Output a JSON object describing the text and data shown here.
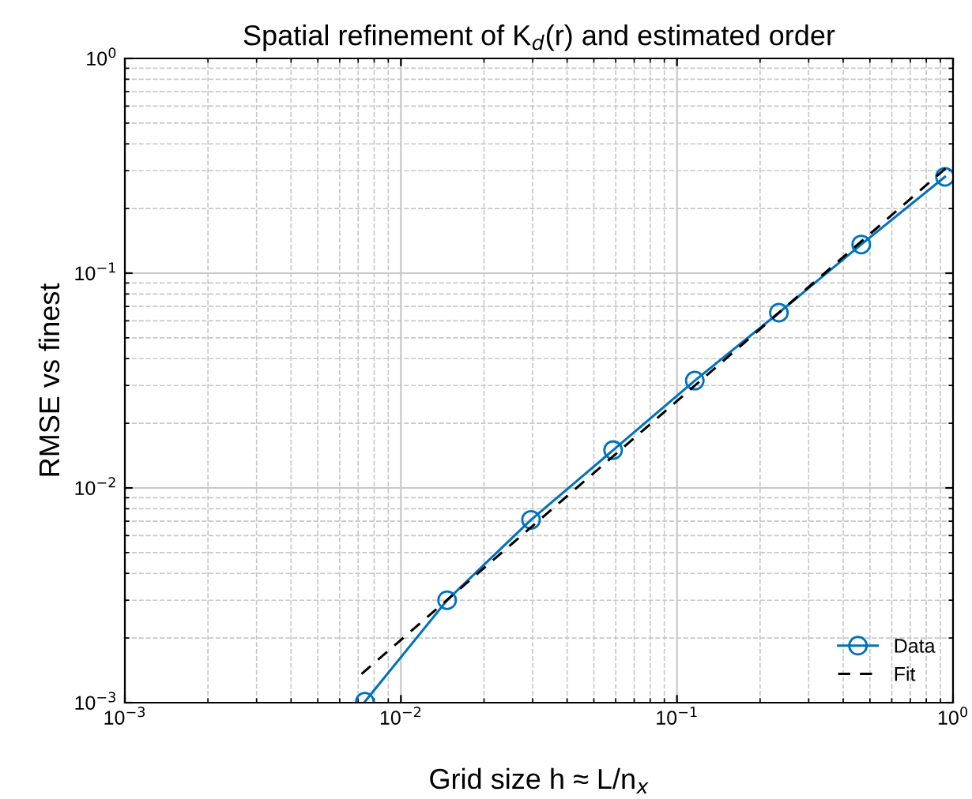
{
  "chart_data": {
    "type": "line",
    "title": "Spatial refinement of K$_{d}$(r) and estimated order",
    "xlabel": "Grid size h ≈ L/n$_{x}$",
    "ylabel": "RMSE vs finest",
    "log": "xy",
    "xlim": [
      0.001,
      1
    ],
    "ylim": [
      0.001,
      1
    ],
    "xticks": [
      {
        "value": 0.001,
        "label": "10$^{−3}$"
      },
      {
        "value": 0.01,
        "label": "10$^{−2}$"
      },
      {
        "value": 0.1,
        "label": "10$^{−1}$"
      },
      {
        "value": 1,
        "label": "10$^{0}$"
      }
    ],
    "yticks": [
      {
        "value": 0.001,
        "label": "10$^{−3}$"
      },
      {
        "value": 0.01,
        "label": "10$^{−2}$"
      },
      {
        "value": 0.1,
        "label": "10$^{−1}$"
      },
      {
        "value": 1,
        "label": "10$^{0}$"
      }
    ],
    "grid": true,
    "legend": "bottom right",
    "series": [
      {
        "name": "Data",
        "color": "#0072bd",
        "marker": "circle",
        "line_style": "solid",
        "x": [
          0.0074,
          0.0147,
          0.0296,
          0.0587,
          0.116,
          0.234,
          0.465,
          0.935
        ],
        "values": [
          0.00101,
          0.003,
          0.0071,
          0.015,
          0.0316,
          0.0655,
          0.136,
          0.281
        ]
      },
      {
        "name": "Fit",
        "color": "#000000",
        "marker": "none",
        "line_style": "dashed",
        "x": [
          0.0072,
          0.95
        ],
        "values": [
          0.00136,
          0.311
        ]
      }
    ]
  }
}
